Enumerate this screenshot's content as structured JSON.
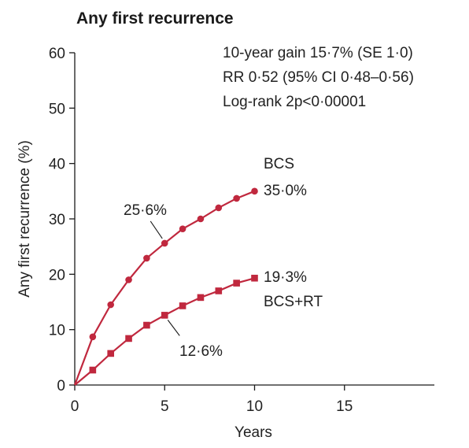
{
  "chart_data": {
    "type": "line",
    "title": "Any first recurrence",
    "xlabel": "Years",
    "ylabel": "Any first recurrence (%)",
    "xlim": [
      0,
      20
    ],
    "ylim": [
      0,
      60
    ],
    "x_ticks": [
      0,
      5,
      10,
      15
    ],
    "x_tick_labels": [
      "0",
      "5",
      "10",
      "15"
    ],
    "y_ticks": [
      0,
      10,
      20,
      30,
      40,
      50,
      60
    ],
    "y_tick_labels": [
      "0",
      "10",
      "20",
      "30",
      "40",
      "50",
      "60"
    ],
    "grid": false,
    "stats": [
      "10-year gain 15·7% (SE 1·0)",
      "RR 0·52 (95% CI 0·48–0·56)",
      "Log-rank 2p<0·00001"
    ],
    "series": [
      {
        "name": "BCS",
        "color": "#c0283e",
        "marker": "circle",
        "x": [
          0,
          1,
          2,
          3,
          4,
          5,
          6,
          7,
          8,
          9,
          10
        ],
        "y": [
          0,
          8.7,
          14.5,
          19.0,
          22.9,
          25.6,
          28.2,
          30.0,
          32.0,
          33.7,
          35.0
        ],
        "end_label": "35·0%"
      },
      {
        "name": "BCS+RT",
        "color": "#c0283e",
        "marker": "square",
        "x": [
          0,
          1,
          2,
          3,
          4,
          5,
          6,
          7,
          8,
          9,
          10
        ],
        "y": [
          0,
          2.7,
          5.7,
          8.4,
          10.8,
          12.6,
          14.3,
          15.8,
          17.0,
          18.4,
          19.3
        ],
        "end_label": "19·3%"
      }
    ],
    "callouts": [
      {
        "text": "25·6%",
        "series": 0,
        "x": 5,
        "y": 25.6
      },
      {
        "text": "12·6%",
        "series": 1,
        "x": 5,
        "y": 12.6
      }
    ]
  }
}
